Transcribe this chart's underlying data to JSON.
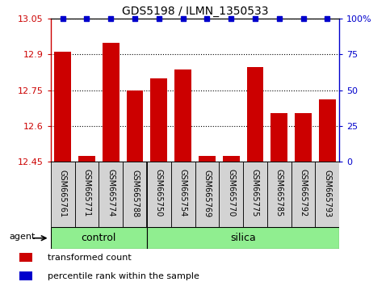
{
  "title": "GDS5198 / ILMN_1350533",
  "samples": [
    "GSM665761",
    "GSM665771",
    "GSM665774",
    "GSM665788",
    "GSM665750",
    "GSM665754",
    "GSM665769",
    "GSM665770",
    "GSM665775",
    "GSM665785",
    "GSM665792",
    "GSM665793"
  ],
  "n_control": 4,
  "transformed_count": [
    12.91,
    12.475,
    12.95,
    12.75,
    12.8,
    12.835,
    12.475,
    12.475,
    12.845,
    12.655,
    12.655,
    12.71
  ],
  "percentile_rank": [
    100,
    100,
    100,
    100,
    100,
    100,
    100,
    100,
    100,
    100,
    100,
    100
  ],
  "ylim_left": [
    12.45,
    13.05
  ],
  "ylim_right": [
    0,
    100
  ],
  "yticks_left": [
    12.45,
    12.6,
    12.75,
    12.9,
    13.05
  ],
  "yticks_right": [
    0,
    25,
    50,
    75,
    100
  ],
  "bar_color": "#cc0000",
  "dot_color": "#0000cc",
  "group_color": "#90ee90",
  "sample_box_color": "#d3d3d3",
  "agent_label": "agent",
  "control_label": "control",
  "silica_label": "silica",
  "legend_bar_label": "transformed count",
  "legend_dot_label": "percentile rank within the sample",
  "title_fontsize": 10,
  "tick_fontsize": 8,
  "sample_fontsize": 7,
  "group_fontsize": 9,
  "legend_fontsize": 8,
  "agent_fontsize": 8
}
